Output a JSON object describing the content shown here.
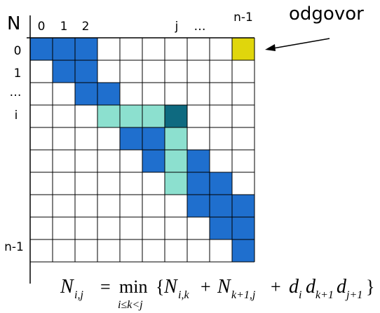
{
  "corner_label": "N",
  "column_labels": [
    "0",
    "1",
    "2",
    "j",
    "…",
    "n-1"
  ],
  "row_labels": [
    "0",
    "1",
    "…",
    "i",
    "n-1"
  ],
  "callout": "odgovor",
  "formula": {
    "lhs": "N",
    "lhs_sub": "i,j",
    "equals": "=",
    "operator": "min",
    "operator_sub": "i≤k<j",
    "open": "{",
    "t1": "N",
    "t1_sub": "i,k",
    "plus1": "+",
    "t2": "N",
    "t2_sub": "k+1,j",
    "plus2": "+",
    "d1": "d",
    "d1_sub": "i",
    "d2": "d",
    "d2_sub": "k+1",
    "d3": "d",
    "d3_sub": "j+1",
    "close": "}"
  }
}
